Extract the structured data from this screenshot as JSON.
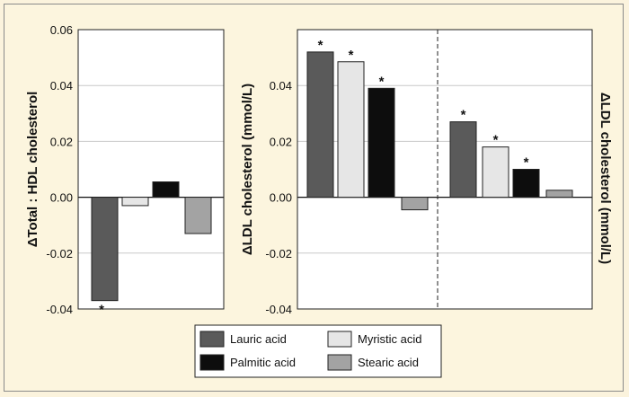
{
  "colors": {
    "lauric": "#5a5a5a",
    "myristic": "#e6e6e6",
    "palmitic": "#0d0d0d",
    "stearic": "#a3a3a3",
    "plot_bg": "#ffffff",
    "grid": "#c8c8c8"
  },
  "legend": [
    {
      "key": "lauric",
      "label": "Lauric acid"
    },
    {
      "key": "myristic",
      "label": "Myristic acid"
    },
    {
      "key": "palmitic",
      "label": "Palmitic acid"
    },
    {
      "key": "stearic",
      "label": "Stearic acid"
    }
  ],
  "chart_data": [
    {
      "type": "bar",
      "ylabel": "ΔTotal : HDL cholesterol",
      "ylabel_side": "left",
      "ylim": [
        -0.04,
        0.06
      ],
      "yticks": [
        "-0.04",
        "-0.02",
        "0.00",
        "0.02",
        "0.04",
        "0.06"
      ],
      "grid": true,
      "series": [
        {
          "name": "Lauric acid",
          "value": -0.037,
          "significant": true
        },
        {
          "name": "Myristic acid",
          "value": -0.003,
          "significant": false
        },
        {
          "name": "Palmitic acid",
          "value": 0.0055,
          "significant": false
        },
        {
          "name": "Stearic acid",
          "value": -0.013,
          "significant": false
        }
      ],
      "annotation": "*"
    },
    {
      "type": "bar",
      "ylabel": "ΔLDL cholesterol (mmol/L)",
      "ylabel_side": "left",
      "ylim": [
        -0.04,
        0.06
      ],
      "yticks": [
        "-0.04",
        "-0.02",
        "0.00",
        "0.02",
        "0.04"
      ],
      "grid": true,
      "series": [
        {
          "name": "Lauric acid",
          "value": 0.052,
          "significant": true
        },
        {
          "name": "Myristic acid",
          "value": 0.0485,
          "significant": true
        },
        {
          "name": "Palmitic acid",
          "value": 0.039,
          "significant": true
        },
        {
          "name": "Stearic acid",
          "value": -0.0045,
          "significant": false
        }
      ],
      "annotation": "*"
    },
    {
      "type": "bar",
      "ylabel": "ΔLDL cholesterol (mmol/L)",
      "ylabel_side": "right",
      "ylim": [
        -0.04,
        0.06
      ],
      "grid": true,
      "series": [
        {
          "name": "Lauric acid",
          "value": 0.027,
          "significant": true
        },
        {
          "name": "Myristic acid",
          "value": 0.018,
          "significant": true
        },
        {
          "name": "Palmitic acid",
          "value": 0.01,
          "significant": true
        },
        {
          "name": "Stearic acid",
          "value": 0.0025,
          "significant": false
        }
      ],
      "annotation": "*"
    }
  ]
}
